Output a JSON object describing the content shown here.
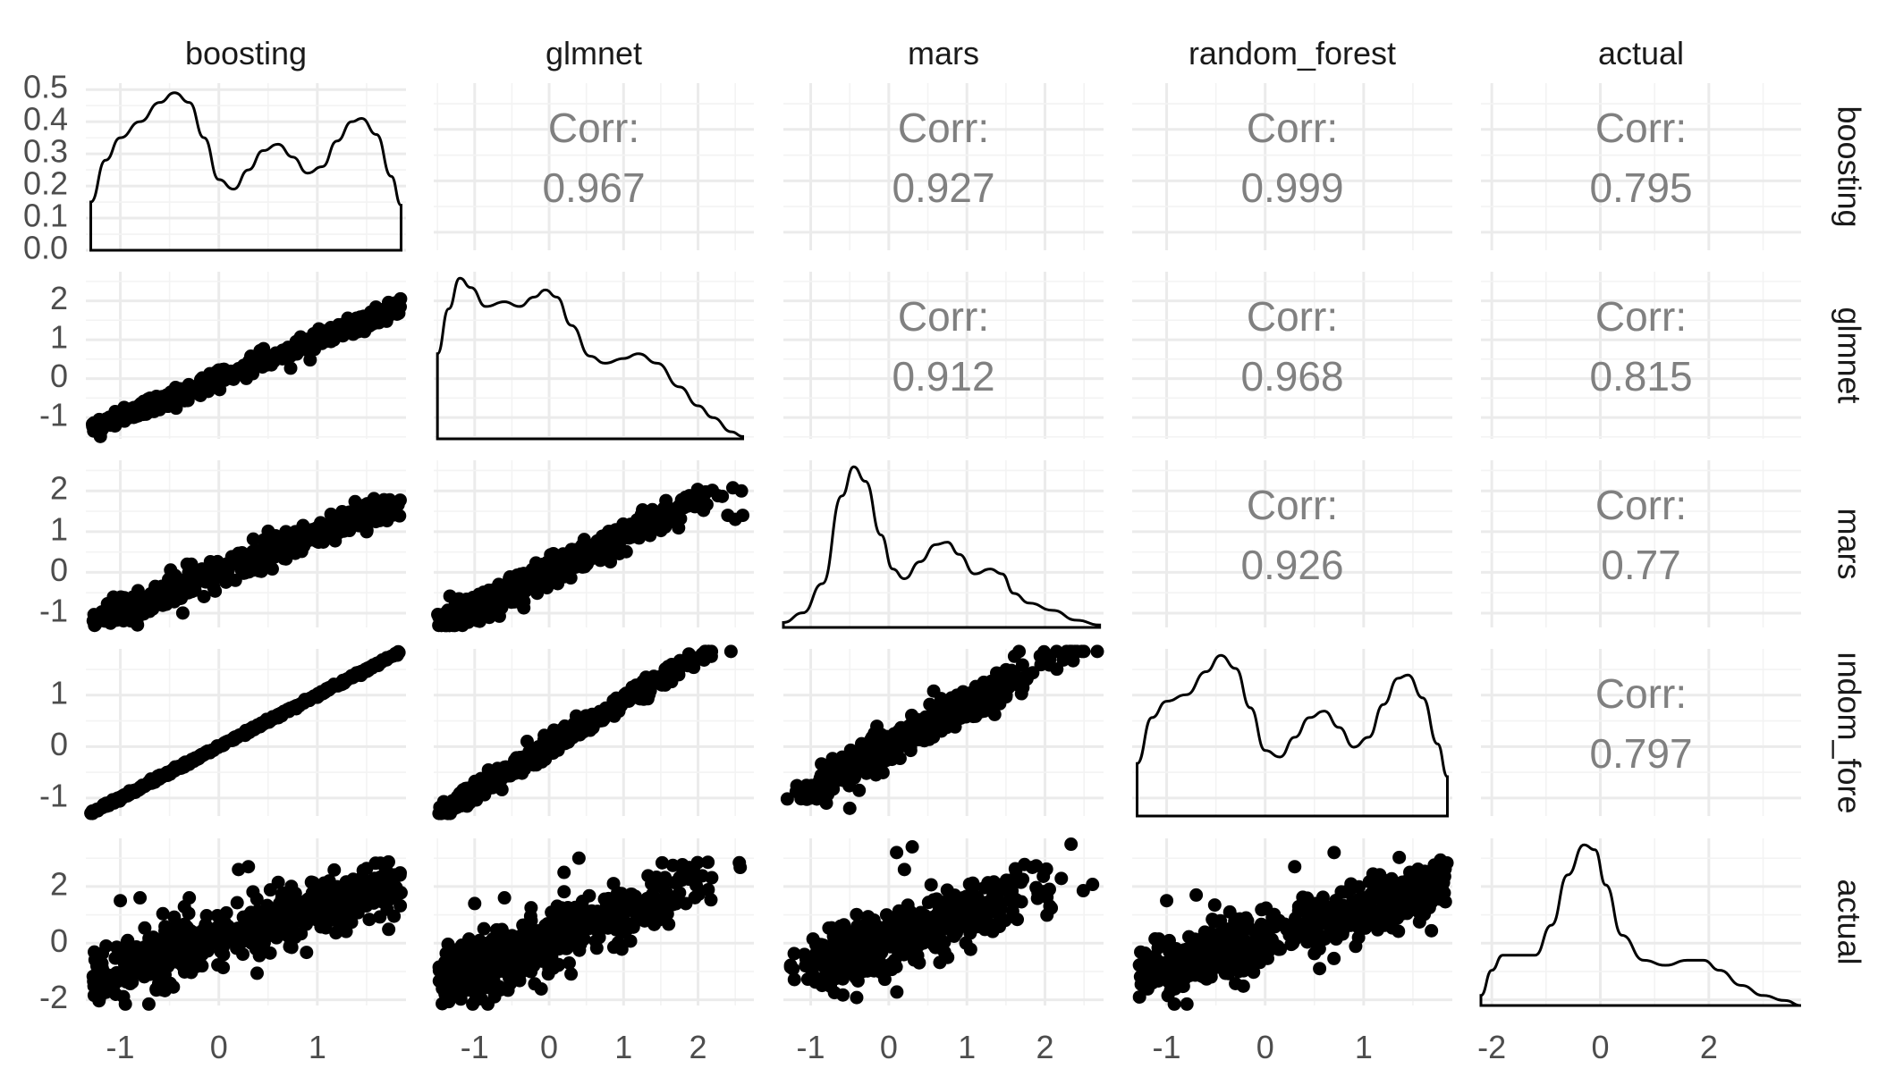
{
  "chart_data": {
    "type": "scatter",
    "title": "",
    "variables": [
      "boosting",
      "glmnet",
      "mars",
      "random_forest",
      "actual"
    ],
    "corr_label": "Corr:",
    "correlations": [
      {
        "row": "boosting",
        "col": "glmnet",
        "value": "0.967"
      },
      {
        "row": "boosting",
        "col": "mars",
        "value": "0.927"
      },
      {
        "row": "boosting",
        "col": "random_forest",
        "value": "0.999"
      },
      {
        "row": "boosting",
        "col": "actual",
        "value": "0.795"
      },
      {
        "row": "glmnet",
        "col": "mars",
        "value": "0.912"
      },
      {
        "row": "glmnet",
        "col": "random_forest",
        "value": "0.968"
      },
      {
        "row": "glmnet",
        "col": "actual",
        "value": "0.815"
      },
      {
        "row": "mars",
        "col": "random_forest",
        "value": "0.926"
      },
      {
        "row": "mars",
        "col": "actual",
        "value": "0.77"
      },
      {
        "row": "random_forest",
        "col": "actual",
        "value": "0.797"
      }
    ],
    "ranges": {
      "boosting": [
        -1.35,
        1.9
      ],
      "glmnet": [
        -1.55,
        2.75
      ],
      "mars": [
        -1.35,
        2.75
      ],
      "random_forest": [
        -1.35,
        1.9
      ],
      "actual": [
        -2.2,
        3.7
      ]
    },
    "x_ticks": {
      "boosting": [
        -1,
        0,
        1
      ],
      "glmnet": [
        -1,
        0,
        1,
        2
      ],
      "mars": [
        -1,
        0,
        1,
        2
      ],
      "random_forest": [
        -1,
        0,
        1
      ],
      "actual": [
        -2,
        0,
        2
      ]
    },
    "y_ticks": {
      "boosting": [
        -1,
        0,
        1
      ],
      "glmnet": [
        -1,
        0,
        1,
        2
      ],
      "mars": [
        -1,
        0,
        1,
        2
      ],
      "random_forest": [
        -1,
        0,
        1
      ],
      "actual": [
        -2,
        0,
        2
      ]
    },
    "density_axis": {
      "ticks": [
        "0.0",
        "0.1",
        "0.2",
        "0.3",
        "0.4",
        "0.5"
      ],
      "range": [
        0,
        0.52
      ]
    },
    "densities": {
      "boosting": [
        [
          -1.3,
          0.15
        ],
        [
          -1.15,
          0.28
        ],
        [
          -1.0,
          0.35
        ],
        [
          -0.8,
          0.4
        ],
        [
          -0.6,
          0.46
        ],
        [
          -0.45,
          0.49
        ],
        [
          -0.3,
          0.46
        ],
        [
          -0.15,
          0.35
        ],
        [
          0.0,
          0.22
        ],
        [
          0.15,
          0.19
        ],
        [
          0.3,
          0.25
        ],
        [
          0.45,
          0.31
        ],
        [
          0.6,
          0.33
        ],
        [
          0.75,
          0.29
        ],
        [
          0.9,
          0.24
        ],
        [
          1.05,
          0.26
        ],
        [
          1.2,
          0.34
        ],
        [
          1.35,
          0.4
        ],
        [
          1.45,
          0.41
        ],
        [
          1.6,
          0.36
        ],
        [
          1.75,
          0.23
        ],
        [
          1.85,
          0.14
        ]
      ],
      "glmnet": [
        [
          -1.5,
          0.36
        ],
        [
          -1.35,
          0.55
        ],
        [
          -1.2,
          0.68
        ],
        [
          -1.05,
          0.64
        ],
        [
          -0.85,
          0.56
        ],
        [
          -0.6,
          0.58
        ],
        [
          -0.4,
          0.56
        ],
        [
          -0.2,
          0.6
        ],
        [
          -0.05,
          0.63
        ],
        [
          0.1,
          0.6
        ],
        [
          0.3,
          0.48
        ],
        [
          0.55,
          0.35
        ],
        [
          0.75,
          0.32
        ],
        [
          1.0,
          0.34
        ],
        [
          1.2,
          0.36
        ],
        [
          1.45,
          0.32
        ],
        [
          1.75,
          0.22
        ],
        [
          2.0,
          0.14
        ],
        [
          2.2,
          0.09
        ],
        [
          2.45,
          0.03
        ],
        [
          2.6,
          0.01
        ]
      ],
      "mars": [
        [
          -1.35,
          0.02
        ],
        [
          -1.1,
          0.06
        ],
        [
          -0.85,
          0.18
        ],
        [
          -0.6,
          0.54
        ],
        [
          -0.45,
          0.66
        ],
        [
          -0.3,
          0.6
        ],
        [
          -0.1,
          0.38
        ],
        [
          0.05,
          0.24
        ],
        [
          0.2,
          0.2
        ],
        [
          0.4,
          0.27
        ],
        [
          0.6,
          0.34
        ],
        [
          0.75,
          0.35
        ],
        [
          0.9,
          0.3
        ],
        [
          1.1,
          0.22
        ],
        [
          1.3,
          0.24
        ],
        [
          1.45,
          0.22
        ],
        [
          1.6,
          0.14
        ],
        [
          1.8,
          0.1
        ],
        [
          2.1,
          0.07
        ],
        [
          2.4,
          0.03
        ],
        [
          2.7,
          0.01
        ]
      ],
      "random_forest": [
        [
          -1.3,
          0.16
        ],
        [
          -1.15,
          0.3
        ],
        [
          -1.0,
          0.35
        ],
        [
          -0.8,
          0.37
        ],
        [
          -0.6,
          0.44
        ],
        [
          -0.45,
          0.49
        ],
        [
          -0.3,
          0.45
        ],
        [
          -0.15,
          0.33
        ],
        [
          0.0,
          0.2
        ],
        [
          0.15,
          0.18
        ],
        [
          0.3,
          0.24
        ],
        [
          0.45,
          0.3
        ],
        [
          0.6,
          0.32
        ],
        [
          0.75,
          0.27
        ],
        [
          0.9,
          0.21
        ],
        [
          1.05,
          0.24
        ],
        [
          1.2,
          0.34
        ],
        [
          1.35,
          0.42
        ],
        [
          1.45,
          0.43
        ],
        [
          1.6,
          0.36
        ],
        [
          1.75,
          0.22
        ],
        [
          1.85,
          0.12
        ]
      ],
      "actual": [
        [
          -2.2,
          0.02
        ],
        [
          -2.0,
          0.07
        ],
        [
          -1.8,
          0.1
        ],
        [
          -1.5,
          0.1
        ],
        [
          -1.2,
          0.1
        ],
        [
          -0.9,
          0.16
        ],
        [
          -0.6,
          0.26
        ],
        [
          -0.3,
          0.32
        ],
        [
          -0.1,
          0.31
        ],
        [
          0.1,
          0.24
        ],
        [
          0.4,
          0.14
        ],
        [
          0.8,
          0.09
        ],
        [
          1.2,
          0.08
        ],
        [
          1.6,
          0.09
        ],
        [
          1.9,
          0.09
        ],
        [
          2.2,
          0.07
        ],
        [
          2.6,
          0.04
        ],
        [
          3.0,
          0.02
        ],
        [
          3.4,
          0.01
        ],
        [
          3.7,
          0.0
        ]
      ]
    },
    "scatter_pairs": [
      {
        "x": "boosting",
        "y": "glmnet",
        "slope": 0.99,
        "noise": 0.18,
        "outliers": []
      },
      {
        "x": "boosting",
        "y": "mars",
        "slope": 0.95,
        "noise": 0.28,
        "outliers": []
      },
      {
        "x": "glmnet",
        "y": "mars",
        "slope": 0.9,
        "noise": 0.3,
        "outliers": [
          [
            2.4,
            1.4
          ],
          [
            2.6,
            1.4
          ],
          [
            2.5,
            1.3
          ]
        ]
      },
      {
        "x": "boosting",
        "y": "random_forest",
        "slope": 1.0,
        "noise": 0.03,
        "outliers": []
      },
      {
        "x": "glmnet",
        "y": "random_forest",
        "slope": 0.88,
        "noise": 0.16,
        "outliers": []
      },
      {
        "x": "mars",
        "y": "random_forest",
        "slope": 0.82,
        "noise": 0.28,
        "outliers": [
          [
            -1.0,
            -1.0
          ],
          [
            -0.8,
            -1.1
          ],
          [
            -0.5,
            -1.2
          ]
        ]
      },
      {
        "x": "boosting",
        "y": "actual",
        "slope": 1.05,
        "noise": 0.75,
        "outliers": [
          [
            -1.0,
            1.5
          ],
          [
            -0.8,
            1.6
          ],
          [
            -0.3,
            1.6
          ],
          [
            0.2,
            2.6
          ],
          [
            0.3,
            2.7
          ]
        ]
      },
      {
        "x": "glmnet",
        "y": "actual",
        "slope": 1.0,
        "noise": 0.72,
        "outliers": [
          [
            -1.0,
            1.4
          ],
          [
            -0.6,
            1.6
          ],
          [
            0.2,
            2.5
          ],
          [
            0.4,
            3.0
          ]
        ]
      },
      {
        "x": "mars",
        "y": "actual",
        "slope": 0.95,
        "noise": 0.78,
        "outliers": [
          [
            0.1,
            3.2
          ],
          [
            0.3,
            3.4
          ],
          [
            0.2,
            2.6
          ]
        ]
      },
      {
        "x": "random_forest",
        "y": "actual",
        "slope": 1.05,
        "noise": 0.75,
        "outliers": [
          [
            -1.0,
            1.5
          ],
          [
            -0.7,
            1.7
          ],
          [
            0.3,
            2.7
          ],
          [
            0.7,
            3.2
          ]
        ]
      }
    ]
  }
}
